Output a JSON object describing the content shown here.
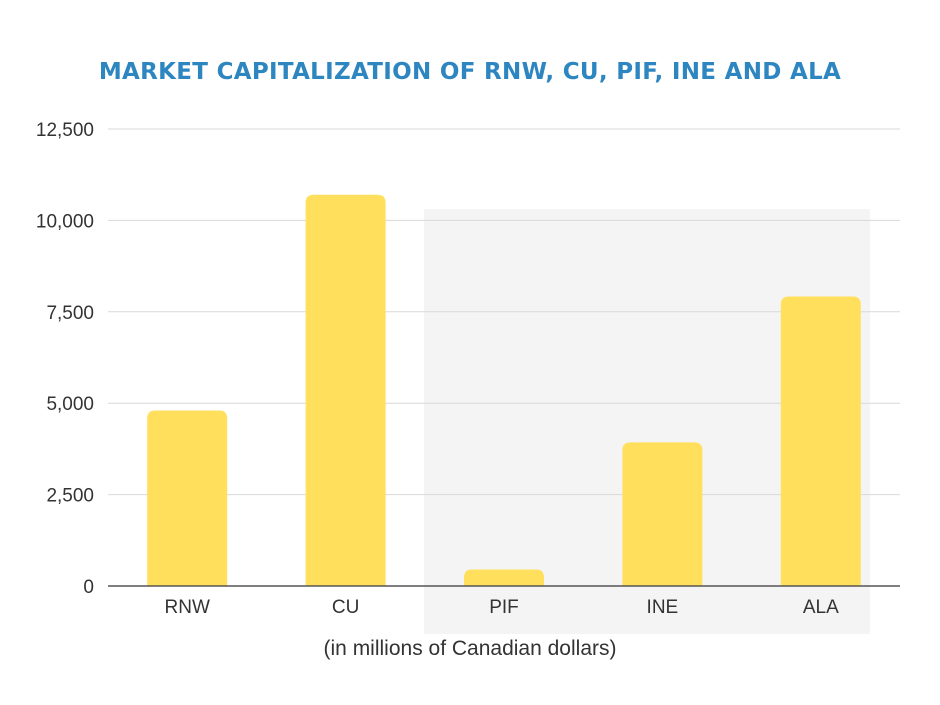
{
  "chart_data": {
    "type": "bar",
    "title": "MARKET CAPITALIZATION OF RNW, CU, PIF, INE AND ALA",
    "xlabel": "(in millions of Canadian dollars)",
    "ylabel": "",
    "categories": [
      "RNW",
      "CU",
      "PIF",
      "INE",
      "ALA"
    ],
    "values": [
      4800,
      10700,
      450,
      3930,
      7920
    ],
    "ylim": [
      0,
      12500
    ],
    "yticks": [
      0,
      2500,
      5000,
      7500,
      10000,
      12500
    ],
    "ytick_labels": [
      "0",
      "2,500",
      "5,000",
      "7,500",
      "10,000",
      "12,500"
    ],
    "grid": true,
    "highlight_categories": [
      "PIF",
      "INE",
      "ALA"
    ],
    "colors": {
      "bar": "#ffdf5c",
      "title": "#2e86c1",
      "grid": "#d9d9d9",
      "axis": "#555555",
      "highlight_background": "#f4f4f4"
    }
  }
}
